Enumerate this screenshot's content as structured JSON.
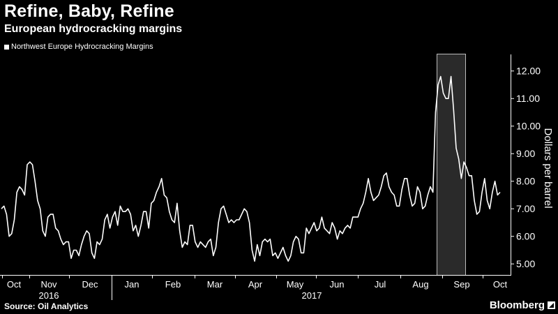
{
  "header": {
    "title": "Refine, Baby, Refine",
    "subtitle": "European hydrocracking margins"
  },
  "footer": {
    "source": "Source: Oil Analytics",
    "brand": "Bloomberg"
  },
  "colors": {
    "background": "#000000",
    "line": "#ffffff",
    "highlight_band": "#2a2a2a",
    "highlight_border": "#bdbdbd",
    "axis": "#ffffff"
  },
  "chart_data": {
    "type": "line",
    "series": [
      {
        "name": "Northwest Europe Hydrocracking Margins",
        "values": [
          7.0,
          7.1,
          6.8,
          6.0,
          6.1,
          6.6,
          7.6,
          7.8,
          7.7,
          7.5,
          8.6,
          8.7,
          8.6,
          8.0,
          7.3,
          7.0,
          6.2,
          6.0,
          6.7,
          6.8,
          6.8,
          6.3,
          6.2,
          5.9,
          5.7,
          5.8,
          5.8,
          5.2,
          5.5,
          5.5,
          5.3,
          5.7,
          6.0,
          6.2,
          6.1,
          5.4,
          5.2,
          5.8,
          5.7,
          5.9,
          6.6,
          6.8,
          6.3,
          6.7,
          6.9,
          6.4,
          7.1,
          6.9,
          6.9,
          7.0,
          6.8,
          6.2,
          6.4,
          6.0,
          6.4,
          6.9,
          6.9,
          6.3,
          7.2,
          7.3,
          7.6,
          7.8,
          8.1,
          7.5,
          7.4,
          6.9,
          6.6,
          6.5,
          7.2,
          6.2,
          5.6,
          5.8,
          5.7,
          6.4,
          6.4,
          5.8,
          5.6,
          5.8,
          5.7,
          5.6,
          5.8,
          5.9,
          5.3,
          5.6,
          6.5,
          7.0,
          7.1,
          6.8,
          6.5,
          6.6,
          6.5,
          6.6,
          6.6,
          6.8,
          7.0,
          6.9,
          6.5,
          5.5,
          5.1,
          5.7,
          5.3,
          5.8,
          5.9,
          5.8,
          5.9,
          5.3,
          5.4,
          5.2,
          5.4,
          5.6,
          5.3,
          5.1,
          5.3,
          5.8,
          6.0,
          5.9,
          5.4,
          5.4,
          6.3,
          6.1,
          6.3,
          6.5,
          6.2,
          6.3,
          6.7,
          6.3,
          6.2,
          6.1,
          6.5,
          6.3,
          5.9,
          6.2,
          6.1,
          6.3,
          6.4,
          6.3,
          6.7,
          6.7,
          6.7,
          7.0,
          7.2,
          7.6,
          8.1,
          7.6,
          7.3,
          7.4,
          7.5,
          7.8,
          8.2,
          8.3,
          7.8,
          7.6,
          7.5,
          7.1,
          7.1,
          7.7,
          8.1,
          8.1,
          7.5,
          7.1,
          7.2,
          7.8,
          7.6,
          7.0,
          7.1,
          7.5,
          7.8,
          7.6,
          10.5,
          11.5,
          11.8,
          11.2,
          11.0,
          11.0,
          11.8,
          10.6,
          9.2,
          8.8,
          8.1,
          8.7,
          8.5,
          8.2,
          8.2,
          7.3,
          6.8,
          6.9,
          7.6,
          8.1,
          7.3,
          7.0,
          7.6,
          8.0,
          7.5,
          7.6
        ]
      }
    ],
    "x_tick_labels": [
      "Oct",
      "Nov",
      "Dec",
      "Jan",
      "Feb",
      "Mar",
      "Apr",
      "May",
      "Jun",
      "Jul",
      "Aug",
      "Sep",
      "Oct"
    ],
    "year_labels": [
      "2016",
      "2017"
    ],
    "y_ticks": [
      "5.00",
      "6.00",
      "7.00",
      "8.00",
      "9.00",
      "10.00",
      "11.00",
      "12.00"
    ],
    "ylim": [
      4.6,
      12.5
    ],
    "ylabel": "Dollars per barrel",
    "xlabel": "",
    "grid": false,
    "legend_position": "top-left"
  }
}
